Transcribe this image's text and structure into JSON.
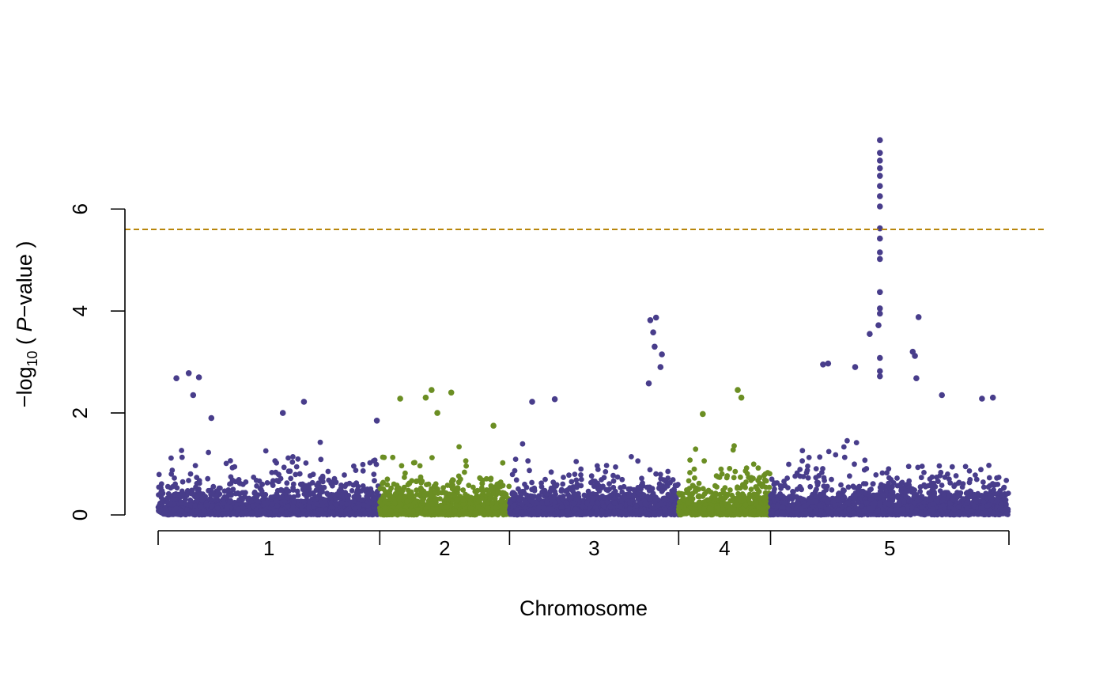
{
  "chart_data": {
    "type": "scatter",
    "subtype": "manhattan",
    "title": "",
    "xlabel": "Chromosome",
    "ylabel_parts": {
      "pre": "−log",
      "sub": "10",
      "mid": " ( ",
      "italic": "P",
      "post": "−value )"
    },
    "ylim": [
      0,
      7.4
    ],
    "yticks": [
      0,
      2,
      4,
      6
    ],
    "threshold": 5.6,
    "threshold_color": "#B8860B",
    "grid": false,
    "legend": "none",
    "colors": [
      "#483D8B",
      "#6B8E23"
    ],
    "chromosomes": [
      {
        "label": "1",
        "start": 0,
        "end": 30.4,
        "color_index": 0
      },
      {
        "label": "2",
        "start": 30.4,
        "end": 48.2,
        "color_index": 1
      },
      {
        "label": "3",
        "start": 48.2,
        "end": 71.4,
        "color_index": 0
      },
      {
        "label": "4",
        "start": 71.4,
        "end": 84.0,
        "color_index": 1
      },
      {
        "label": "5",
        "start": 84.0,
        "end": 116.7,
        "color_index": 0
      }
    ],
    "peaks": [
      {
        "chrom": "1",
        "x": 4.2,
        "p": 2.78
      },
      {
        "chrom": "1",
        "x": 2.5,
        "p": 2.68
      },
      {
        "chrom": "1",
        "x": 5.6,
        "p": 2.7
      },
      {
        "chrom": "1",
        "x": 4.8,
        "p": 2.35
      },
      {
        "chrom": "1",
        "x": 20.0,
        "p": 2.22
      },
      {
        "chrom": "1",
        "x": 17.1,
        "p": 2.0
      },
      {
        "chrom": "1",
        "x": 7.3,
        "p": 1.9
      },
      {
        "chrom": "1",
        "x": 30.0,
        "p": 1.85
      },
      {
        "chrom": "2",
        "x": 33.2,
        "p": 2.28
      },
      {
        "chrom": "2",
        "x": 37.5,
        "p": 2.45
      },
      {
        "chrom": "2",
        "x": 40.2,
        "p": 2.4
      },
      {
        "chrom": "2",
        "x": 36.7,
        "p": 2.3
      },
      {
        "chrom": "2",
        "x": 38.3,
        "p": 2.0
      },
      {
        "chrom": "2",
        "x": 46.0,
        "p": 1.75
      },
      {
        "chrom": "3",
        "x": 51.3,
        "p": 2.22
      },
      {
        "chrom": "3",
        "x": 54.4,
        "p": 2.27
      },
      {
        "chrom": "3",
        "x": 67.5,
        "p": 3.82
      },
      {
        "chrom": "3",
        "x": 68.3,
        "p": 3.87
      },
      {
        "chrom": "3",
        "x": 67.9,
        "p": 3.58
      },
      {
        "chrom": "3",
        "x": 68.1,
        "p": 3.3
      },
      {
        "chrom": "3",
        "x": 69.1,
        "p": 3.15
      },
      {
        "chrom": "3",
        "x": 68.9,
        "p": 2.9
      },
      {
        "chrom": "3",
        "x": 67.3,
        "p": 2.58
      },
      {
        "chrom": "4",
        "x": 79.5,
        "p": 2.45
      },
      {
        "chrom": "4",
        "x": 80.0,
        "p": 2.3
      },
      {
        "chrom": "4",
        "x": 74.7,
        "p": 1.98
      },
      {
        "chrom": "5",
        "x": 91.2,
        "p": 2.95
      },
      {
        "chrom": "5",
        "x": 91.9,
        "p": 2.97
      },
      {
        "chrom": "5",
        "x": 95.6,
        "p": 2.9
      },
      {
        "chrom": "5",
        "x": 99.0,
        "p": 7.35
      },
      {
        "chrom": "5",
        "x": 99.0,
        "p": 7.1
      },
      {
        "chrom": "5",
        "x": 99.0,
        "p": 6.95
      },
      {
        "chrom": "5",
        "x": 99.0,
        "p": 6.8
      },
      {
        "chrom": "5",
        "x": 99.0,
        "p": 6.65
      },
      {
        "chrom": "5",
        "x": 99.0,
        "p": 6.45
      },
      {
        "chrom": "5",
        "x": 99.0,
        "p": 6.25
      },
      {
        "chrom": "5",
        "x": 99.0,
        "p": 6.05
      },
      {
        "chrom": "5",
        "x": 99.0,
        "p": 5.62
      },
      {
        "chrom": "5",
        "x": 99.0,
        "p": 5.42
      },
      {
        "chrom": "5",
        "x": 99.0,
        "p": 5.15
      },
      {
        "chrom": "5",
        "x": 99.0,
        "p": 5.02
      },
      {
        "chrom": "5",
        "x": 99.0,
        "p": 4.37
      },
      {
        "chrom": "5",
        "x": 99.0,
        "p": 4.05
      },
      {
        "chrom": "5",
        "x": 99.0,
        "p": 3.95
      },
      {
        "chrom": "5",
        "x": 98.8,
        "p": 3.72
      },
      {
        "chrom": "5",
        "x": 97.6,
        "p": 3.55
      },
      {
        "chrom": "5",
        "x": 99.0,
        "p": 3.08
      },
      {
        "chrom": "5",
        "x": 99.0,
        "p": 2.82
      },
      {
        "chrom": "5",
        "x": 99.0,
        "p": 2.72
      },
      {
        "chrom": "5",
        "x": 103.5,
        "p": 3.2
      },
      {
        "chrom": "5",
        "x": 103.8,
        "p": 3.12
      },
      {
        "chrom": "5",
        "x": 104.3,
        "p": 3.88
      },
      {
        "chrom": "5",
        "x": 104.0,
        "p": 2.68
      },
      {
        "chrom": "5",
        "x": 107.5,
        "p": 2.35
      },
      {
        "chrom": "5",
        "x": 113.0,
        "p": 2.28
      },
      {
        "chrom": "5",
        "x": 114.5,
        "p": 2.3
      }
    ]
  }
}
